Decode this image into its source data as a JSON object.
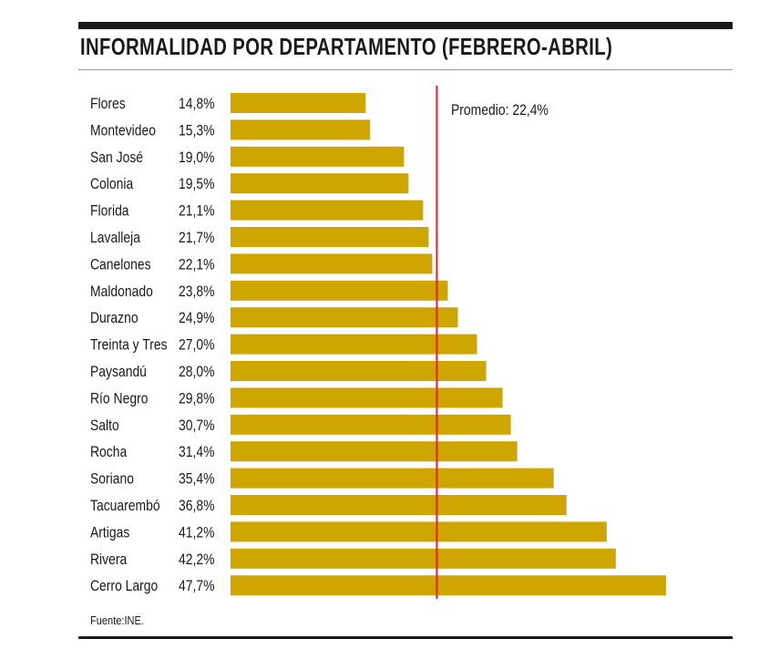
{
  "chart_data": {
    "type": "bar",
    "orientation": "horizontal",
    "title": "INFORMALIDAD POR DEPARTAMENTO (FEBRERO-ABRIL)",
    "categories": [
      "Flores",
      "Montevideo",
      "San José",
      "Colonia",
      "Florida",
      "Lavalleja",
      "Canelones",
      "Maldonado",
      "Durazno",
      "Treinta y Tres",
      "Paysandú",
      "Río Negro",
      "Salto",
      "Rocha",
      "Soriano",
      "Tacuarembó",
      "Artigas",
      "Rivera",
      "Cerro Largo"
    ],
    "values": [
      14.8,
      15.3,
      19.0,
      19.5,
      21.1,
      21.7,
      22.1,
      23.8,
      24.9,
      27.0,
      28.0,
      29.8,
      30.7,
      31.4,
      35.4,
      36.8,
      41.2,
      42.2,
      47.7
    ],
    "labels": [
      "14,8%",
      "15,3%",
      "19,0%",
      "19,5%",
      "21,1%",
      "21,7%",
      "22,1%",
      "23,8%",
      "24,9%",
      "27,0%",
      "28,0%",
      "29,8%",
      "30,7%",
      "31,4%",
      "35,4%",
      "36,8%",
      "41,2%",
      "42,2%",
      "47,7%"
    ],
    "reference_line": {
      "value": 22.4,
      "label": "Promedio: 22,4%",
      "color": "#e0202a"
    },
    "bar_color": "#cfa500",
    "xlim": [
      0,
      50
    ],
    "grid": false,
    "source": "Fuente:INE."
  }
}
